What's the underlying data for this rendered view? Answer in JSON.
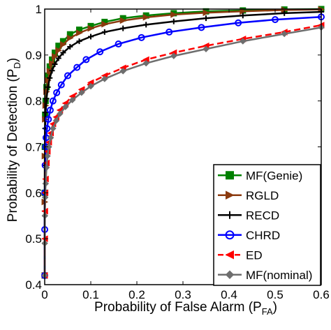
{
  "chart_data": {
    "type": "line",
    "title": "",
    "xlabel": {
      "main": "Probability of False Alarm (P",
      "sub": "FA",
      "close": ")"
    },
    "ylabel": {
      "main": "Probability of Detection (P",
      "sub": "D",
      "close": ")"
    },
    "xlim": [
      0,
      0.6
    ],
    "ylim": [
      0.4,
      1
    ],
    "xticks": [
      "0",
      "0.1",
      "0.2",
      "0.3",
      "0.4",
      "0.5",
      "0.6"
    ],
    "yticks": [
      "0.4",
      "0.5",
      "0.6",
      "0.7",
      "0.8",
      "0.9",
      "1"
    ],
    "grid": false,
    "legend_position": "bottom-right",
    "series": [
      {
        "name": "MF(Genie)",
        "color": "#008000",
        "marker": "square",
        "dash": "solid",
        "x": [
          0,
          0.0001,
          0.0003,
          0.001,
          0.002,
          0.004,
          0.007,
          0.011,
          0.016,
          0.022,
          0.03,
          0.04,
          0.055,
          0.075,
          0.1,
          0.13,
          0.17,
          0.22,
          0.28,
          0.35,
          0.43,
          0.52,
          0.6
        ],
        "y": [
          0.42,
          0.6,
          0.7,
          0.77,
          0.8,
          0.83,
          0.855,
          0.875,
          0.89,
          0.905,
          0.92,
          0.93,
          0.945,
          0.955,
          0.963,
          0.972,
          0.98,
          0.986,
          0.991,
          0.995,
          0.997,
          0.999,
          1.0
        ]
      },
      {
        "name": "RGLD",
        "color": "#8b3a0e",
        "marker": "triangle-right",
        "dash": "solid",
        "x": [
          0,
          0.0001,
          0.0003,
          0.001,
          0.002,
          0.004,
          0.007,
          0.011,
          0.016,
          0.022,
          0.03,
          0.04,
          0.055,
          0.075,
          0.1,
          0.13,
          0.17,
          0.22,
          0.28,
          0.35,
          0.43,
          0.52,
          0.6
        ],
        "y": [
          0.42,
          0.58,
          0.68,
          0.76,
          0.79,
          0.82,
          0.845,
          0.865,
          0.882,
          0.897,
          0.91,
          0.923,
          0.937,
          0.948,
          0.958,
          0.967,
          0.975,
          0.982,
          0.988,
          0.992,
          0.995,
          0.998,
          0.999
        ]
      },
      {
        "name": "RECD",
        "color": "#000000",
        "marker": "plus",
        "dash": "solid",
        "x": [
          0,
          0.0001,
          0.0003,
          0.001,
          0.002,
          0.004,
          0.007,
          0.011,
          0.016,
          0.022,
          0.03,
          0.04,
          0.055,
          0.075,
          0.1,
          0.13,
          0.17,
          0.22,
          0.28,
          0.35,
          0.43,
          0.52,
          0.6
        ],
        "y": [
          0.42,
          0.56,
          0.66,
          0.74,
          0.775,
          0.805,
          0.83,
          0.85,
          0.866,
          0.88,
          0.893,
          0.905,
          0.918,
          0.93,
          0.94,
          0.95,
          0.958,
          0.966,
          0.973,
          0.98,
          0.986,
          0.991,
          0.994
        ]
      },
      {
        "name": "CHRD",
        "color": "#0000ff",
        "marker": "circle",
        "dash": "solid",
        "x": [
          0,
          0.0001,
          0.0003,
          0.001,
          0.002,
          0.003,
          0.005,
          0.008,
          0.012,
          0.018,
          0.026,
          0.036,
          0.05,
          0.07,
          0.09,
          0.12,
          0.16,
          0.21,
          0.27,
          0.34,
          0.42,
          0.5,
          0.6
        ],
        "y": [
          0.42,
          0.52,
          0.6,
          0.66,
          0.7,
          0.72,
          0.74,
          0.76,
          0.78,
          0.8,
          0.818,
          0.835,
          0.855,
          0.873,
          0.89,
          0.907,
          0.924,
          0.938,
          0.95,
          0.96,
          0.97,
          0.977,
          0.983
        ]
      },
      {
        "name": "ED",
        "color": "#ff0000",
        "marker": "triangle-left",
        "dash": "dashed",
        "x": [
          0,
          0.0002,
          0.0005,
          0.001,
          0.002,
          0.004,
          0.006,
          0.009,
          0.013,
          0.018,
          0.025,
          0.033,
          0.045,
          0.06,
          0.08,
          0.1,
          0.13,
          0.17,
          0.22,
          0.28,
          0.35,
          0.43,
          0.52,
          0.6
        ],
        "y": [
          0.42,
          0.5,
          0.56,
          0.6,
          0.63,
          0.665,
          0.69,
          0.71,
          0.73,
          0.75,
          0.765,
          0.78,
          0.795,
          0.81,
          0.825,
          0.84,
          0.855,
          0.872,
          0.89,
          0.905,
          0.92,
          0.935,
          0.95,
          0.965
        ]
      },
      {
        "name": "MF(nominal)",
        "color": "#6e6e6e",
        "marker": "diamond",
        "dash": "solid",
        "x": [
          0,
          0.0002,
          0.0005,
          0.001,
          0.002,
          0.004,
          0.006,
          0.009,
          0.013,
          0.018,
          0.025,
          0.033,
          0.045,
          0.06,
          0.08,
          0.1,
          0.13,
          0.17,
          0.22,
          0.28,
          0.35,
          0.43,
          0.52,
          0.6
        ],
        "y": [
          0.42,
          0.49,
          0.55,
          0.59,
          0.62,
          0.655,
          0.68,
          0.7,
          0.72,
          0.74,
          0.757,
          0.772,
          0.787,
          0.802,
          0.818,
          0.832,
          0.848,
          0.865,
          0.882,
          0.898,
          0.913,
          0.93,
          0.946,
          0.96
        ]
      }
    ]
  }
}
